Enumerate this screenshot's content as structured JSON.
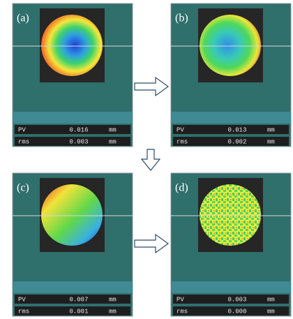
{
  "panels": [
    {
      "label": "(a)",
      "pv": {
        "name": "PV",
        "value": "0.016",
        "unit": "mm"
      },
      "rms": {
        "name": "rms",
        "value": "0.003",
        "unit": "mm"
      }
    },
    {
      "label": "(b)",
      "pv": {
        "name": "PV",
        "value": "0.013",
        "unit": "mm"
      },
      "rms": {
        "name": "rms",
        "value": "0.002",
        "unit": "mm"
      }
    },
    {
      "label": "(c)",
      "pv": {
        "name": "PV",
        "value": "0.007",
        "unit": "mm"
      },
      "rms": {
        "name": "rms",
        "value": "0.001",
        "unit": "mm"
      }
    },
    {
      "label": "(d)",
      "pv": {
        "name": "PV",
        "value": "0.003",
        "unit": "mm"
      },
      "rms": {
        "name": "rms",
        "value": "0.000",
        "unit": "mm"
      }
    }
  ]
}
